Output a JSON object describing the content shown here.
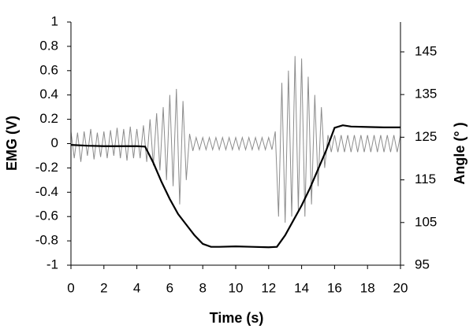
{
  "chart_data": {
    "type": "line",
    "xlabel": "Time (s)",
    "ylabel": "EMG (V)",
    "y2label": "Angle (° )",
    "xlim": [
      0,
      20
    ],
    "xticks": [
      0,
      2,
      4,
      6,
      8,
      10,
      12,
      14,
      16,
      18,
      20
    ],
    "ylim": [
      -1,
      1
    ],
    "yticks": [
      1,
      0.8,
      0.6,
      0.4,
      0.2,
      0,
      -0.2,
      -0.4,
      -0.6,
      -0.8,
      -1
    ],
    "y2lim": [
      95,
      152
    ],
    "y2ticks": [
      145,
      135,
      125,
      115,
      105,
      95
    ],
    "series": [
      {
        "color": "#8c8c8c",
        "x": [
          0,
          0.2,
          0.4,
          0.6,
          0.8,
          1,
          1.2,
          1.4,
          1.6,
          1.8,
          2,
          2.2,
          2.4,
          2.6,
          2.8,
          3,
          3.2,
          3.4,
          3.6,
          3.8,
          4,
          4.2,
          4.4,
          4.6,
          4.8,
          5,
          5.2,
          5.4,
          5.6,
          5.8,
          6,
          6.2,
          6.4,
          6.6,
          6.8,
          7,
          7.2,
          7.4,
          7.6,
          7.8,
          8,
          8.2,
          8.4,
          8.6,
          8.8,
          9,
          9.2,
          9.4,
          9.6,
          9.8,
          10,
          10.2,
          10.4,
          10.6,
          10.8,
          11,
          11.2,
          11.4,
          11.6,
          11.8,
          12,
          12.2,
          12.4,
          12.6,
          12.8,
          13,
          13.2,
          13.4,
          13.6,
          13.8,
          14,
          14.2,
          14.4,
          14.6,
          14.8,
          15,
          15.2,
          15.4,
          15.6,
          15.8,
          16,
          16.2,
          16.4,
          16.6,
          16.8,
          17,
          17.2,
          17.4,
          17.6,
          17.8,
          18,
          18.2,
          18.4,
          18.6,
          18.8,
          19,
          19.2,
          19.4,
          19.6,
          19.8,
          20
        ],
        "values": [
          0.1,
          -0.12,
          0.09,
          -0.15,
          0.1,
          -0.1,
          0.12,
          -0.13,
          0.09,
          -0.11,
          0.1,
          -0.12,
          0.11,
          -0.1,
          0.13,
          -0.12,
          0.12,
          -0.14,
          0.14,
          -0.12,
          0.12,
          -0.12,
          0.15,
          -0.15,
          0.2,
          -0.18,
          0.25,
          -0.22,
          0.3,
          -0.3,
          0.4,
          -0.35,
          0.45,
          -0.5,
          0.35,
          -0.3,
          0.08,
          -0.06,
          0.05,
          -0.05,
          0.05,
          -0.05,
          0.05,
          -0.05,
          0.05,
          -0.05,
          0.05,
          -0.05,
          0.05,
          -0.05,
          0.05,
          -0.05,
          0.05,
          -0.05,
          0.05,
          -0.05,
          0.05,
          -0.05,
          0.05,
          -0.05,
          0.05,
          -0.05,
          0.1,
          -0.6,
          0.5,
          -0.65,
          0.6,
          -0.6,
          0.72,
          -0.55,
          0.7,
          -0.6,
          0.55,
          -0.5,
          0.4,
          -0.35,
          0.3,
          -0.2,
          0.07,
          -0.07,
          0.07,
          -0.07,
          0.07,
          -0.07,
          0.07,
          -0.07,
          0.07,
          -0.07,
          0.07,
          -0.07,
          0.07,
          -0.07,
          0.07,
          -0.07,
          0.07,
          -0.07,
          0.07,
          -0.07,
          0.07,
          -0.07,
          0.07
        ]
      },
      {
        "color": "#000000",
        "axis": "y2",
        "x": [
          0,
          1,
          2,
          3,
          4,
          4.5,
          5,
          5.5,
          6,
          6.5,
          7,
          7.5,
          8,
          8.5,
          9,
          10,
          11,
          12,
          12.5,
          13,
          13.5,
          14,
          14.5,
          15,
          15.5,
          16,
          16.5,
          17,
          18,
          19,
          20
        ],
        "values": [
          123.2,
          123,
          122.9,
          122.9,
          122.9,
          122.8,
          119,
          114.5,
          110.5,
          107,
          104.5,
          102,
          100,
          99.3,
          99.3,
          99.4,
          99.3,
          99.2,
          99.3,
          102,
          105.5,
          109,
          113,
          117.5,
          122,
          127.2,
          127.8,
          127.5,
          127.4,
          127.3,
          127.3
        ]
      }
    ]
  }
}
